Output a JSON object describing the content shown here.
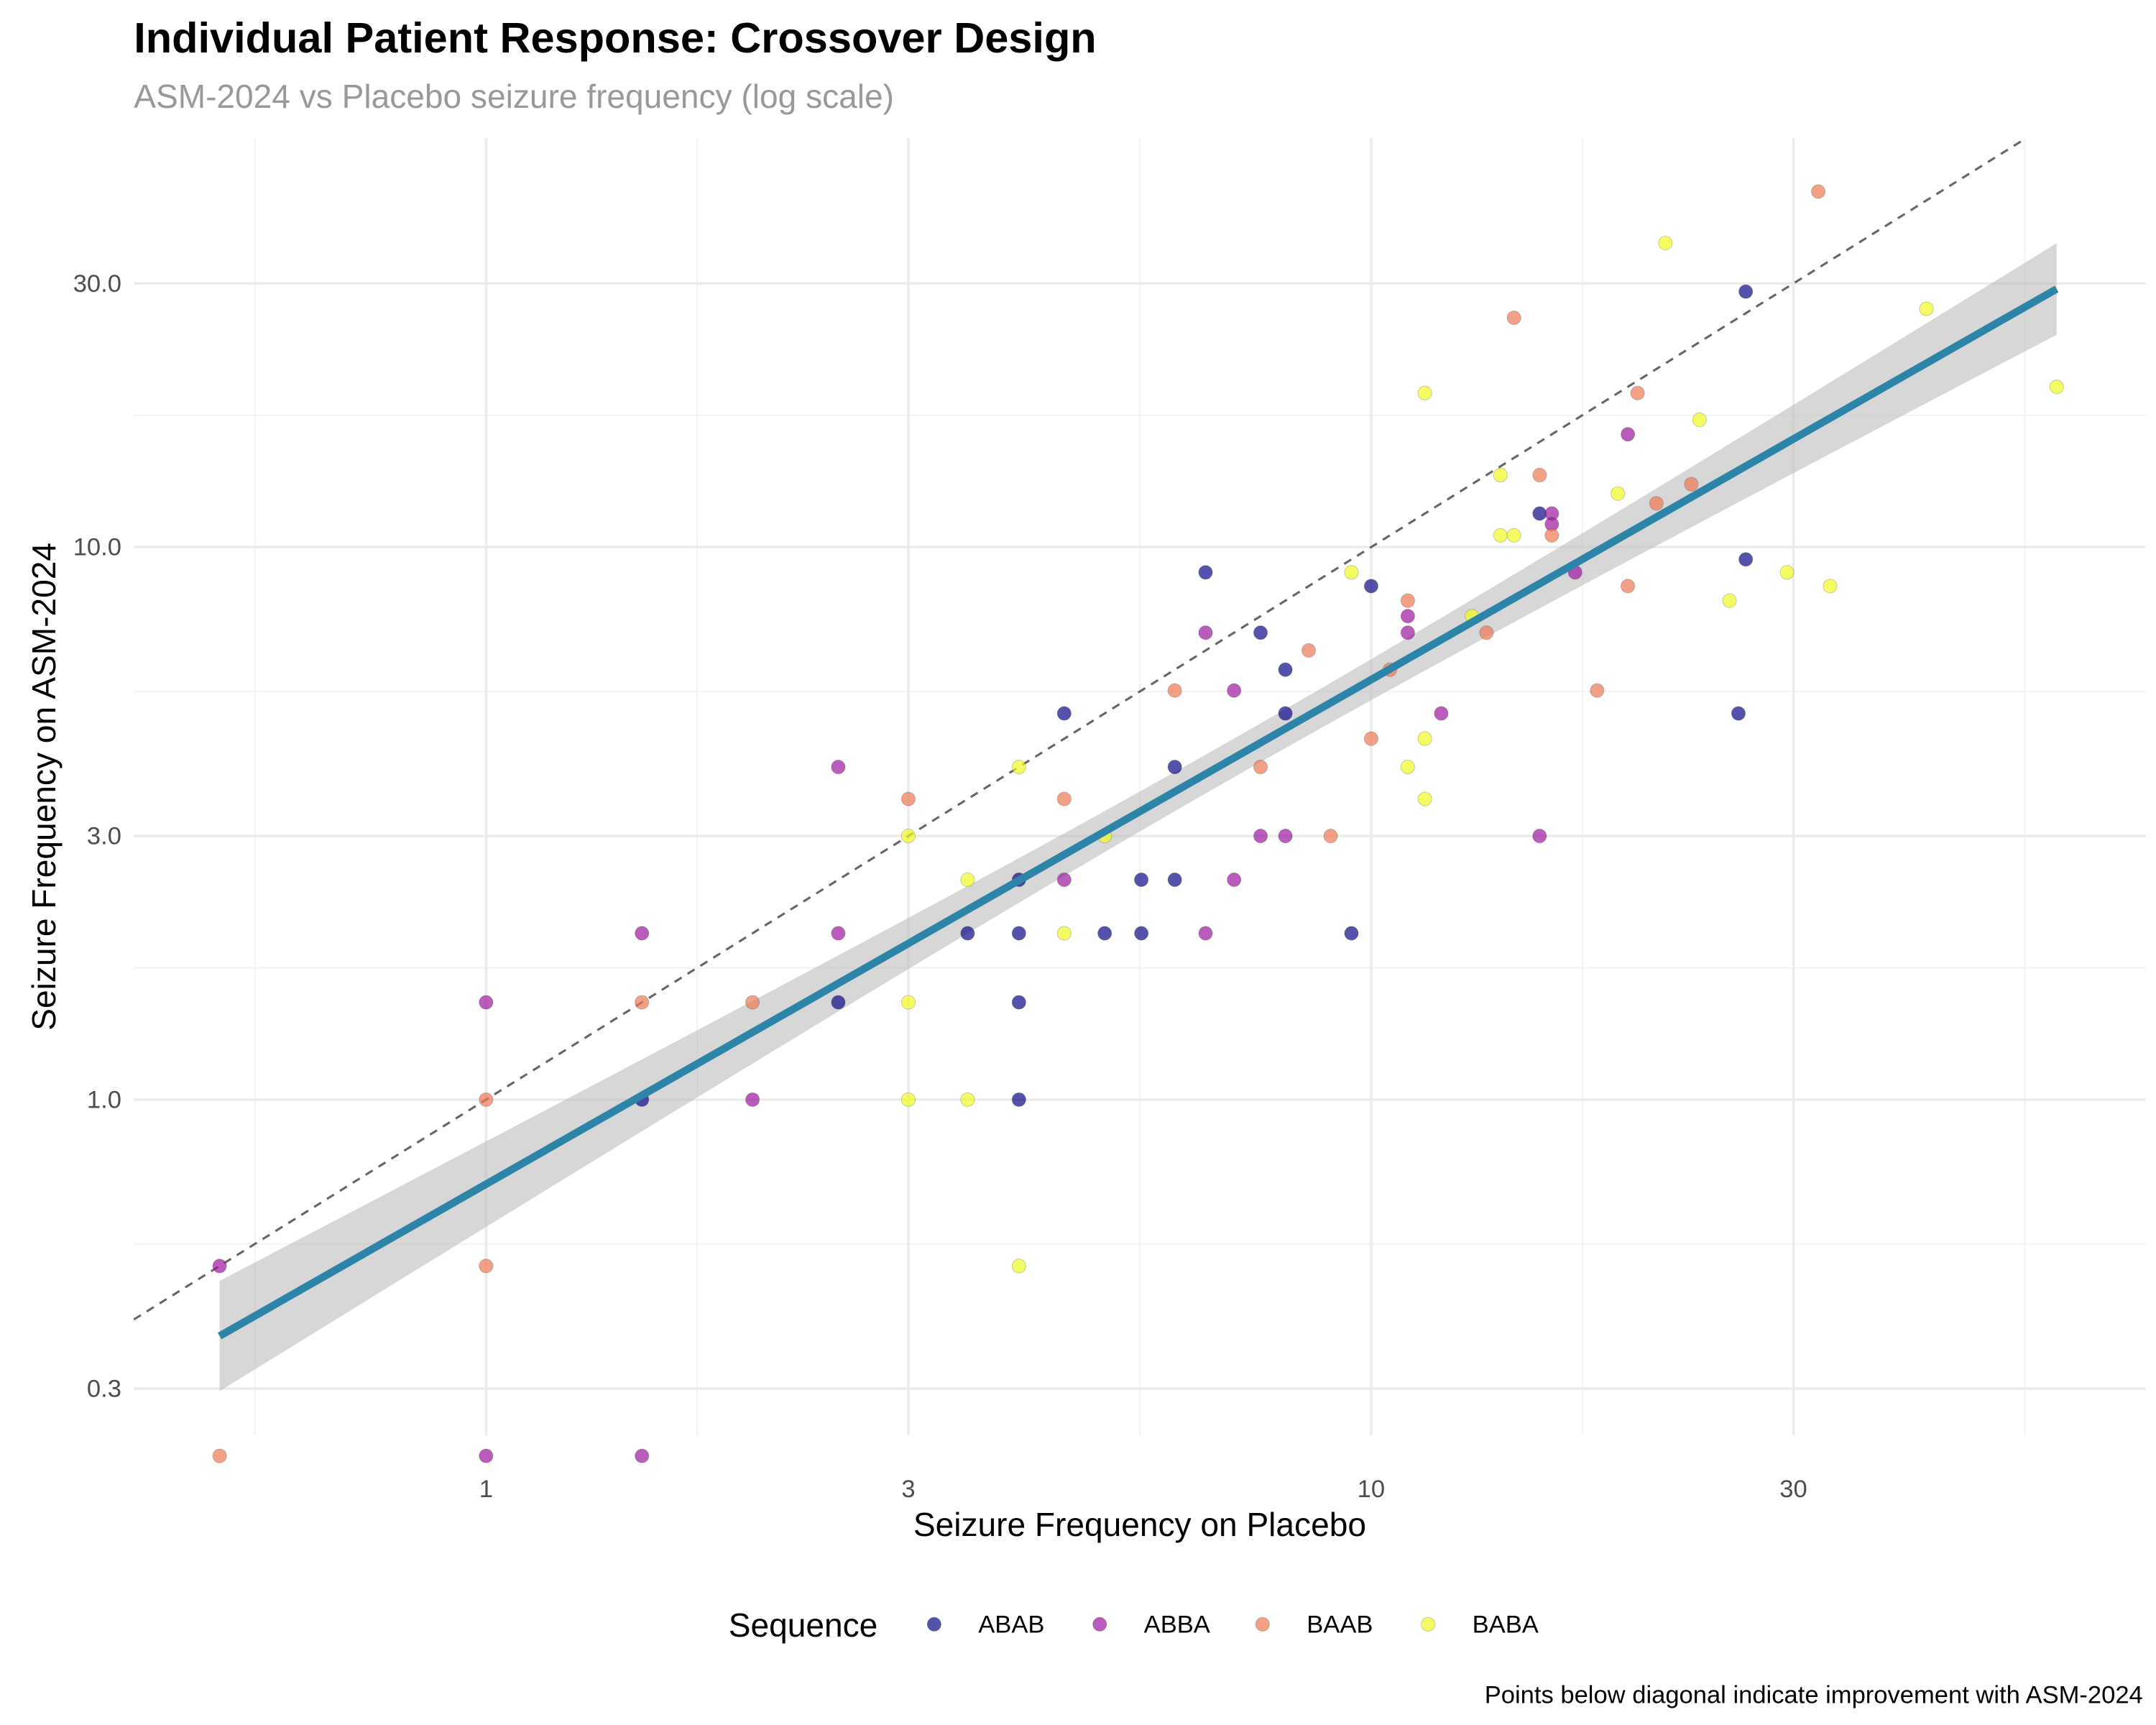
{
  "chart_data": {
    "type": "scatter",
    "title": "Individual Patient Response: Crossover Design",
    "subtitle": "ASM-2024 vs Placebo seizure frequency (log scale)",
    "xlabel": "Seizure Frequency on Placebo",
    "ylabel": "Seizure Frequency on ASM-2024",
    "caption": "Points below diagonal indicate improvement with ASM-2024",
    "x_scale": "log10",
    "y_scale": "log10",
    "xlim": [
      0.4,
      75
    ],
    "ylim": [
      0.247,
      55
    ],
    "x_ticks": [
      {
        "value": 1,
        "label": "1"
      },
      {
        "value": 3,
        "label": "3"
      },
      {
        "value": 10,
        "label": "10"
      },
      {
        "value": 30,
        "label": "30"
      }
    ],
    "y_ticks": [
      {
        "value": 0.3,
        "label": "0.3"
      },
      {
        "value": 1,
        "label": "1.0"
      },
      {
        "value": 3,
        "label": "3.0"
      },
      {
        "value": 10,
        "label": "10.0"
      },
      {
        "value": 30,
        "label": "30.0"
      }
    ],
    "grid": true,
    "legend": {
      "title": "Sequence",
      "placement": "bottom"
    },
    "reference_line": {
      "type": "identity",
      "style": "dashed",
      "color": "#666666"
    },
    "fit": {
      "type": "linear on log scale",
      "slope": 0.913,
      "intercept_log10": -0.153,
      "color": "#2c85a8",
      "band_color": "#bdbdbd",
      "x_range": [
        0.5,
        59.5
      ]
    },
    "series": [
      {
        "name": "ABAB",
        "color": "#0d0887",
        "x": [
          26.5,
          26.5,
          26,
          15.5,
          10,
          6.5,
          7.5,
          8,
          8,
          6,
          4.5,
          4,
          5.5,
          6,
          5,
          5.5,
          4,
          3.5,
          9.5,
          4,
          4,
          2.5,
          1.5
        ],
        "y": [
          29,
          9.5,
          5,
          11.5,
          8.5,
          9,
          7,
          6,
          5,
          4,
          5,
          2.5,
          2.5,
          2.5,
          2,
          2,
          2,
          2,
          2,
          1.5,
          1,
          1.5,
          1
        ]
      },
      {
        "name": "ABBA",
        "color": "#9c179e",
        "x": [
          0.5,
          1,
          1,
          1.5,
          1.5,
          2,
          2.5,
          2.5,
          4.5,
          6.5,
          7,
          7.5,
          8,
          7,
          6.5,
          11,
          11,
          12,
          15.5,
          16,
          16,
          17,
          19.5
        ],
        "y": [
          0.5,
          1.5,
          0.225,
          2,
          0.225,
          1,
          4,
          2,
          2.5,
          7,
          5.5,
          3,
          3,
          2.5,
          2,
          7.5,
          7,
          5,
          3,
          11.5,
          11,
          9,
          16
        ]
      },
      {
        "name": "BAAB",
        "color": "#ed7953",
        "x": [
          0.5,
          1,
          1,
          1.5,
          2,
          3,
          4.5,
          6,
          7.5,
          8.5,
          9,
          10,
          11,
          10.5,
          13.5,
          14.5,
          15.5,
          16,
          18,
          19.5,
          20,
          21,
          23,
          32
        ],
        "y": [
          0.225,
          1,
          0.5,
          1.5,
          1.5,
          3.5,
          3.5,
          5.5,
          4,
          6.5,
          3,
          4.5,
          8,
          6,
          7,
          26,
          13.5,
          10.5,
          5.5,
          8.5,
          19,
          12,
          13,
          44
        ]
      },
      {
        "name": "BABA",
        "color": "#f0f921",
        "x": [
          4,
          3,
          3.5,
          3,
          3,
          3.5,
          4,
          4.5,
          5,
          9.5,
          11,
          11.5,
          11.5,
          11.5,
          13,
          14,
          14,
          14.5,
          19,
          21.5,
          23.5,
          25.4,
          29.5,
          33,
          42.4,
          59.5
        ],
        "y": [
          0.5,
          1,
          1,
          1.5,
          3,
          2.5,
          4,
          2,
          3,
          9,
          4,
          4.5,
          3.5,
          19,
          7.5,
          13.5,
          10.5,
          10.5,
          12.5,
          35.5,
          17,
          8,
          9,
          8.5,
          27,
          19.5
        ]
      }
    ]
  }
}
